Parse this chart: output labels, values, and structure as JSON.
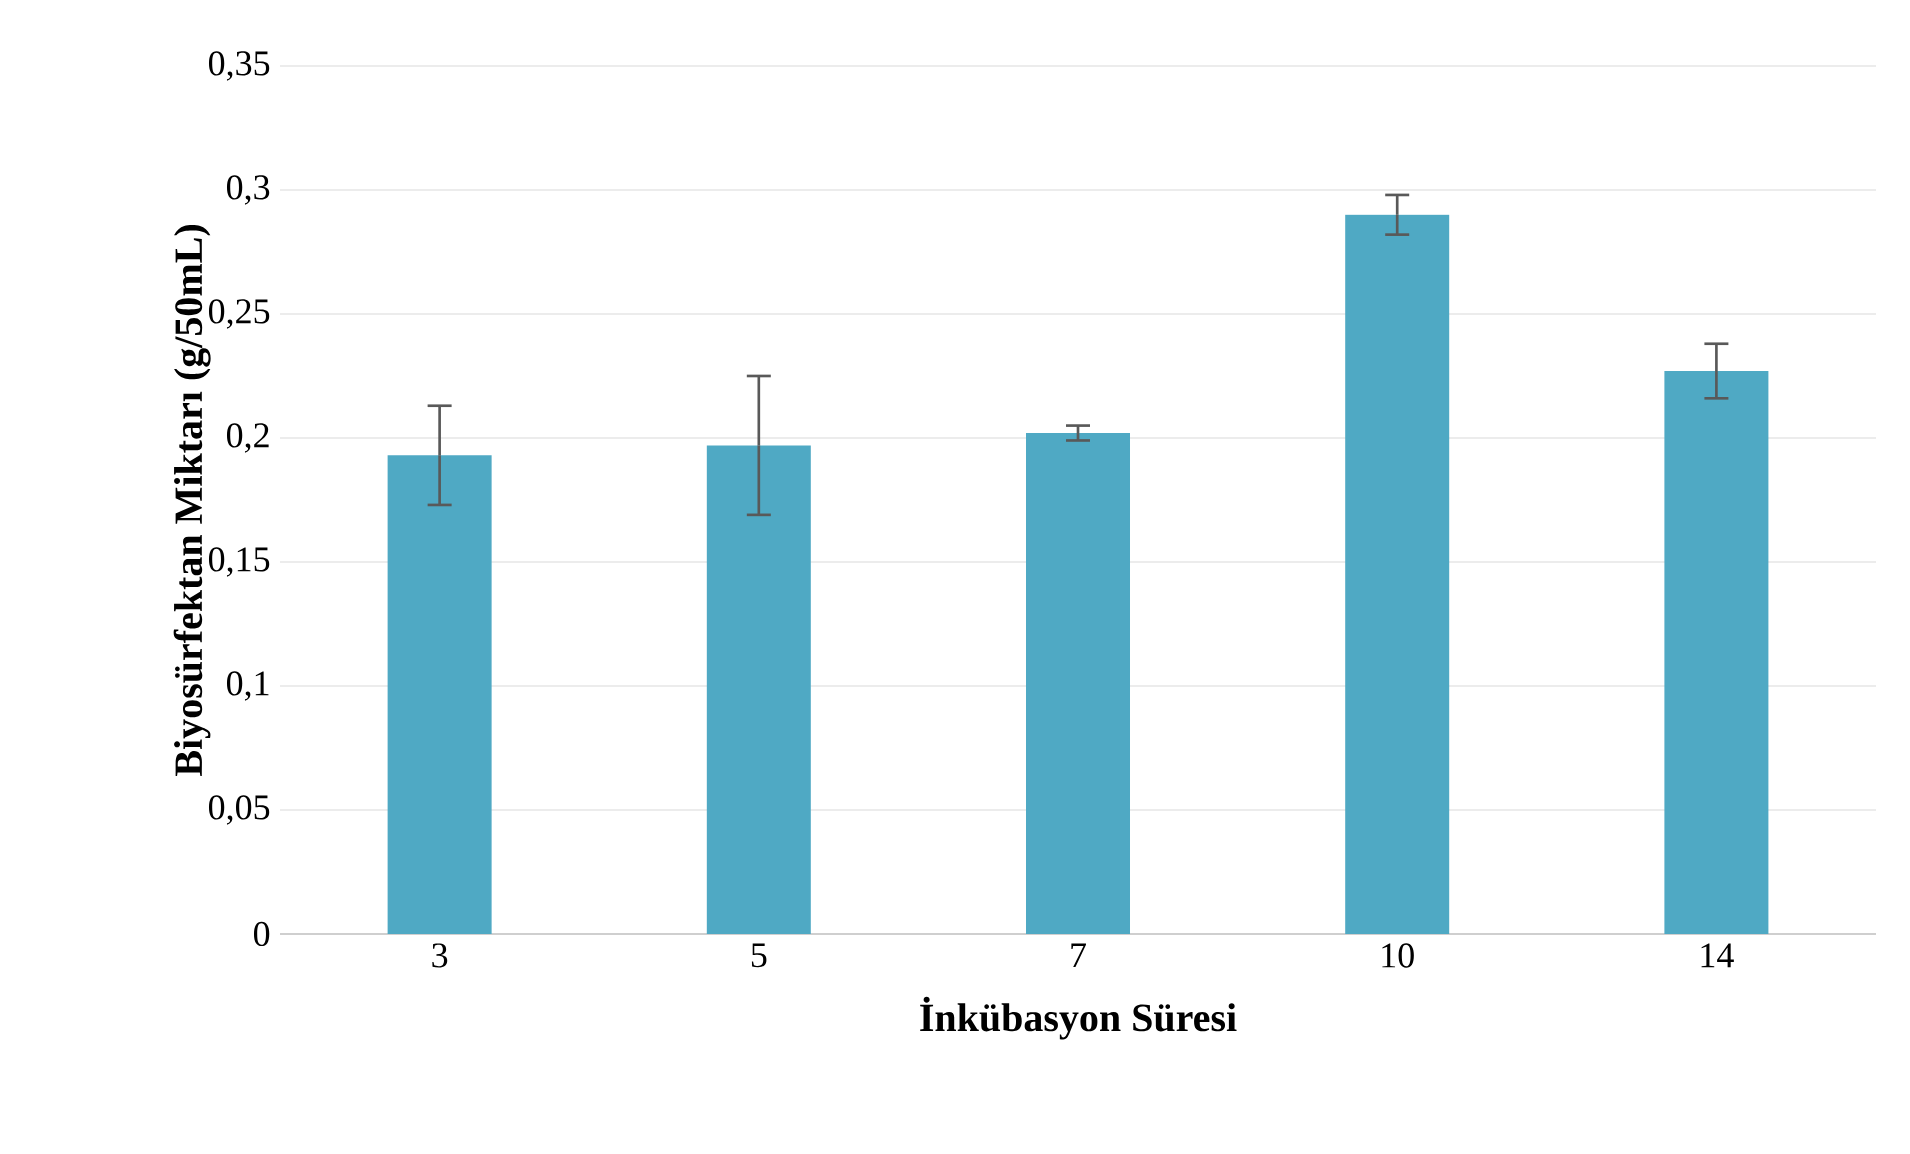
{
  "chart_data": {
    "type": "bar",
    "xlabel": "İnkübasyon Süresi",
    "ylabel": "Biyosürfektan Miktarı (g/50mL)",
    "categories": [
      "3",
      "5",
      "7",
      "10",
      "14"
    ],
    "values": [
      0.193,
      0.197,
      0.202,
      0.29,
      0.227
    ],
    "errors": [
      0.02,
      0.028,
      0.003,
      0.008,
      0.011
    ],
    "color": "#4fa9c4",
    "ylim": [
      0,
      0.35
    ],
    "yticks": [
      {
        "value": 0,
        "label": "0"
      },
      {
        "value": 0.05,
        "label": "0,05"
      },
      {
        "value": 0.1,
        "label": "0,1"
      },
      {
        "value": 0.15,
        "label": "0,15"
      },
      {
        "value": 0.2,
        "label": "0,2"
      },
      {
        "value": 0.25,
        "label": "0,25"
      },
      {
        "value": 0.3,
        "label": "0,3"
      },
      {
        "value": 0.35,
        "label": "0,35"
      }
    ],
    "grid": "y"
  }
}
